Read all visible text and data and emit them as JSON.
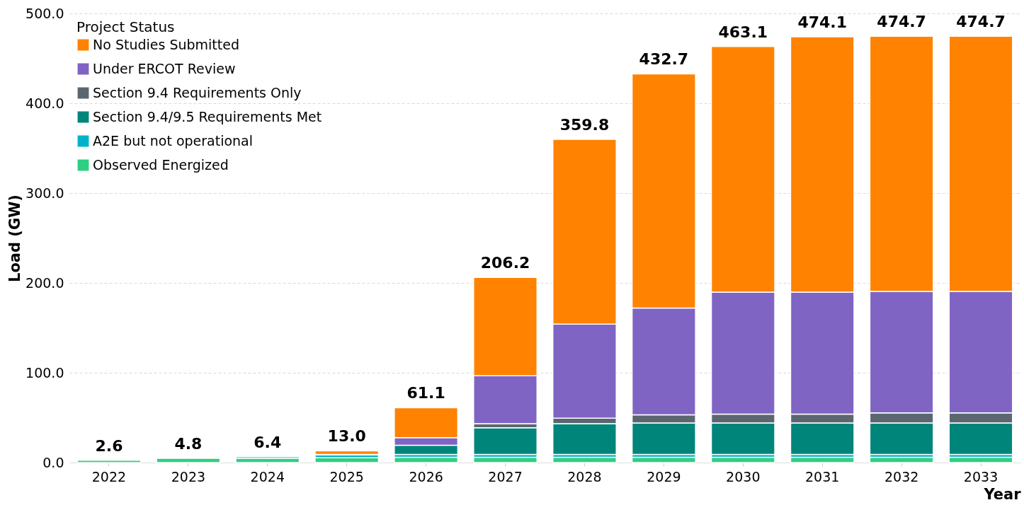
{
  "chart_data": {
    "type": "bar",
    "stacked": true,
    "xlabel": "Year",
    "ylabel": "Load (GW)",
    "legend_title": "Project Status",
    "legend": "top left",
    "grid": "y",
    "categories": [
      "2022",
      "2023",
      "2024",
      "2025",
      "2026",
      "2027",
      "2028",
      "2029",
      "2030",
      "2031",
      "2032",
      "2033"
    ],
    "ylim": [
      0,
      500
    ],
    "yticks": [
      {
        "value": 0,
        "label": "0.0"
      },
      {
        "value": 100,
        "label": "100.0"
      },
      {
        "value": 200,
        "label": "200.0"
      },
      {
        "value": 300,
        "label": "300.0"
      },
      {
        "value": 400,
        "label": "400.0"
      },
      {
        "value": 500,
        "label": "500.0"
      }
    ],
    "series": [
      {
        "name": "Observed Energized",
        "color": "#2ecf80",
        "values": [
          2.6,
          4.8,
          4.8,
          5.5,
          6.0,
          6.0,
          6.0,
          6.0,
          6.0,
          6.0,
          6.0,
          6.0
        ]
      },
      {
        "name": "A2E but not operational",
        "color": "#00b2c9",
        "values": [
          0,
          0,
          1.6,
          3.0,
          3.0,
          3.0,
          3.0,
          3.0,
          3.0,
          3.0,
          3.0,
          3.0
        ]
      },
      {
        "name": "Section 9.4/9.5 Requirements Met",
        "color": "#00857a",
        "values": [
          0,
          0,
          0,
          0.5,
          10.2,
          29.7,
          34.3,
          35.1,
          35.1,
          35.1,
          35.1,
          35.1
        ]
      },
      {
        "name": "Section 9.4 Requirements Only",
        "color": "#5b6770",
        "values": [
          0,
          0,
          0,
          0,
          null,
          4.6,
          6.1,
          9.0,
          9.8,
          9.8,
          11.2,
          11.2
        ]
      },
      {
        "name": "Under ERCOT Review",
        "color": "#8064c4",
        "values": [
          0,
          0,
          0,
          0,
          8.5,
          53.4,
          104.7,
          118.9,
          135.8,
          135.8,
          135.2,
          135.2
        ]
      },
      {
        "name": "No Studies Submitted",
        "color": "#ff8200",
        "values": [
          0,
          0,
          0,
          4.0,
          33.4,
          109.5,
          205.7,
          260.7,
          273.4,
          284.4,
          284.2,
          284.2
        ]
      }
    ],
    "totals": [
      "2.6",
      "4.8",
      "6.4",
      "13.0",
      "61.1",
      "206.2",
      "359.8",
      "432.7",
      "463.1",
      "474.1",
      "474.7",
      "474.7"
    ]
  }
}
